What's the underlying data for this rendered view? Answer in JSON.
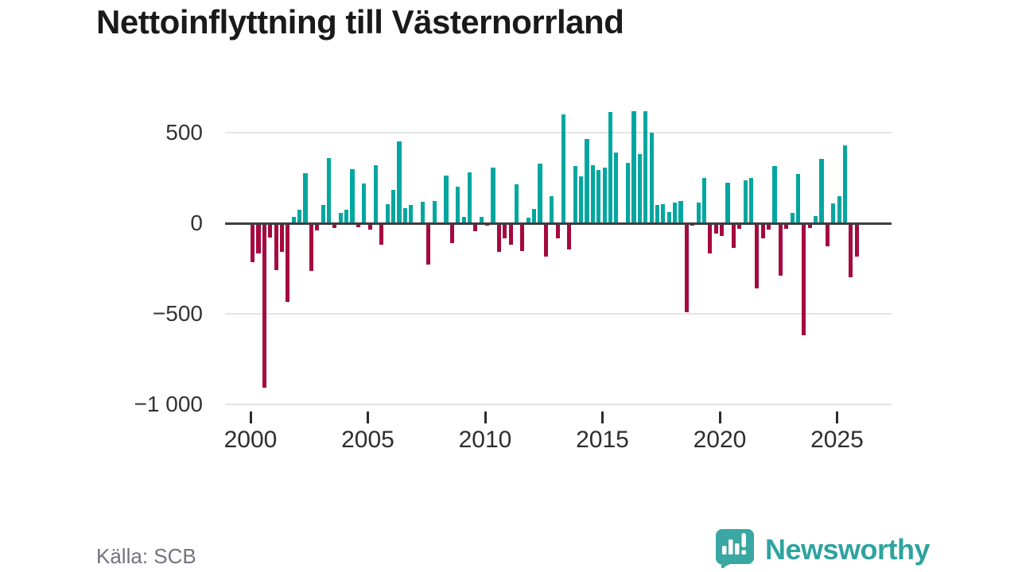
{
  "title": "Nettoinflyttning till Västernorrland",
  "source": "Källa: SCB",
  "logo": {
    "text": "Newsworthy",
    "color": "#2ea3a0",
    "icon_color": "#3aa7a3"
  },
  "colors": {
    "positive": "#00a7a0",
    "negative": "#a6093d",
    "grid": "#e4e4e4",
    "zero_line": "#3d3d42",
    "axis_text": "#333333",
    "title_text": "#1a1a1a",
    "source_text": "#73737e"
  },
  "chart_data": {
    "type": "bar",
    "title": "Nettoinflyttning till Västernorrland",
    "x": {
      "start": "2000 Q1",
      "end": "2025 Q4",
      "step": "quarter"
    },
    "ylim": [
      -1000,
      650
    ],
    "grid": "horizontal",
    "legend": "none",
    "y_axis": {
      "ticks": [
        {
          "label": "500",
          "value": 500
        },
        {
          "label": "0",
          "value": 0
        },
        {
          "label": "−500",
          "value": -500
        },
        {
          "label": "−1 000",
          "value": -1000
        }
      ]
    },
    "x_axis": {
      "ticks": [
        {
          "label": "2000",
          "year": 2000
        },
        {
          "label": "2005",
          "year": 2005
        },
        {
          "label": "2010",
          "year": 2010
        },
        {
          "label": "2015",
          "year": 2015
        },
        {
          "label": "2020",
          "year": 2020
        },
        {
          "label": "2025",
          "year": 2025
        }
      ]
    },
    "series": [
      {
        "name": "Nettoinflyttning",
        "values": [
          -215,
          -165,
          -910,
          -80,
          -260,
          -160,
          -435,
          35,
          75,
          275,
          -265,
          -40,
          100,
          360,
          -25,
          55,
          75,
          300,
          -20,
          220,
          -35,
          320,
          -120,
          105,
          185,
          450,
          85,
          100,
          0,
          120,
          -230,
          125,
          0,
          265,
          -110,
          200,
          35,
          280,
          -45,
          35,
          -15,
          305,
          -160,
          -85,
          -120,
          215,
          -155,
          30,
          80,
          330,
          -185,
          150,
          -85,
          600,
          -145,
          315,
          260,
          465,
          320,
          295,
          305,
          615,
          390,
          0,
          335,
          620,
          380,
          620,
          500,
          100,
          105,
          60,
          115,
          125,
          -490,
          -15,
          115,
          250,
          -165,
          -55,
          -70,
          225,
          -135,
          -30,
          235,
          250,
          -360,
          -85,
          -35,
          315,
          -290,
          -30,
          55,
          270,
          -620,
          -25,
          40,
          355,
          -125,
          110,
          150,
          430,
          -300,
          -185
        ]
      }
    ]
  }
}
